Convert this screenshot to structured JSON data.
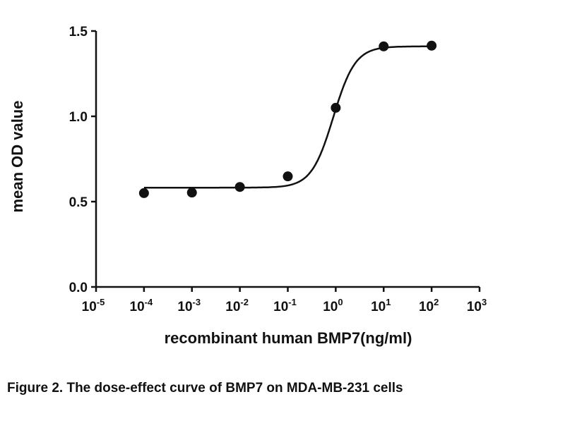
{
  "chart_data": {
    "type": "scatter",
    "title": "",
    "xlabel": "recombinant human BMP7(ng/ml)",
    "ylabel": "mean OD value",
    "xscale": "log10",
    "xlim_log10": [
      -5,
      3
    ],
    "ylim": [
      0,
      1.5
    ],
    "x_ticks": [
      {
        "base": "10",
        "exp": "-5"
      },
      {
        "base": "10",
        "exp": "-4"
      },
      {
        "base": "10",
        "exp": "-3"
      },
      {
        "base": "10",
        "exp": "-2"
      },
      {
        "base": "10",
        "exp": "-1"
      },
      {
        "base": "10",
        "exp": "0"
      },
      {
        "base": "10",
        "exp": "1"
      },
      {
        "base": "10",
        "exp": "2"
      },
      {
        "base": "10",
        "exp": "3"
      }
    ],
    "y_ticks": [
      "0.0",
      "0.5",
      "1.0",
      "1.5"
    ],
    "grid": false,
    "series": [
      {
        "name": "mean OD",
        "x": [
          0.0001,
          0.001,
          0.01,
          0.1,
          1,
          10,
          100
        ],
        "y": [
          0.55,
          0.553,
          0.586,
          0.648,
          1.05,
          1.41,
          1.414
        ]
      }
    ],
    "fit_curve": {
      "model": "sigmoidal dose-response",
      "bottom": 0.582,
      "top": 1.41,
      "logEC50": -0.05,
      "hill": 1.9
    },
    "caption": "Figure 2. The dose-effect curve of BMP7 on MDA-MB-231 cells",
    "colors": {
      "marker": "#111111",
      "line": "#111111"
    }
  }
}
